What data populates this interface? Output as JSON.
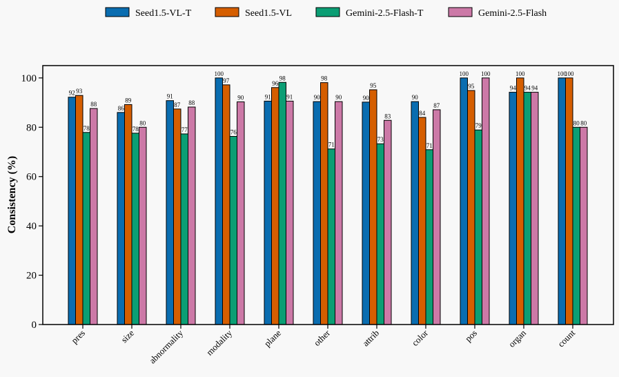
{
  "chart_data": {
    "type": "bar",
    "title": "",
    "xlabel": "",
    "ylabel": "Consistency (%)",
    "ylim": [
      0,
      105
    ],
    "yticks": [
      0,
      20,
      40,
      60,
      80,
      100
    ],
    "grid": false,
    "legend_position": "top-center",
    "categories": [
      "pres",
      "size",
      "abnormality",
      "modality",
      "plane",
      "other",
      "attrib",
      "color",
      "pos",
      "organ",
      "count"
    ],
    "series": [
      {
        "name": "Seed1.5-VL-T",
        "color": "#0a6db0",
        "values": [
          92.2,
          86.0,
          90.8,
          100,
          90.6,
          90.4,
          90.2,
          90.4,
          100,
          94.2,
          100
        ],
        "labels": [
          "92",
          "86",
          "91",
          "100",
          "91",
          "90",
          "90",
          "90",
          "100",
          "94",
          "100"
        ]
      },
      {
        "name": "Seed1.5-VL",
        "color": "#d55e00",
        "values": [
          92.9,
          89.2,
          87.4,
          97.2,
          96.1,
          98.1,
          95.2,
          84.0,
          94.9,
          100,
          100
        ],
        "labels": [
          "93",
          "89",
          "87",
          "97",
          "96",
          "98",
          "95",
          "84",
          "95",
          "100",
          "100"
        ]
      },
      {
        "name": "Gemini-2.5-Flash-T",
        "color": "#0b9e74",
        "values": [
          77.9,
          77.6,
          77.3,
          76.3,
          98.2,
          71.2,
          73.3,
          70.9,
          78.9,
          94.2,
          80
        ],
        "labels": [
          "78",
          "78",
          "77",
          "76",
          "98",
          "71",
          "73",
          "71",
          "79",
          "94",
          "80"
        ]
      },
      {
        "name": "Gemini-2.5-Flash",
        "color": "#cc79a7",
        "values": [
          87.6,
          80.0,
          88.2,
          90.3,
          90.6,
          90.4,
          82.8,
          87.1,
          100,
          94.2,
          80
        ],
        "labels": [
          "88",
          "80",
          "88",
          "90",
          "91",
          "90",
          "83",
          "87",
          "100",
          "94",
          "80"
        ]
      }
    ]
  }
}
